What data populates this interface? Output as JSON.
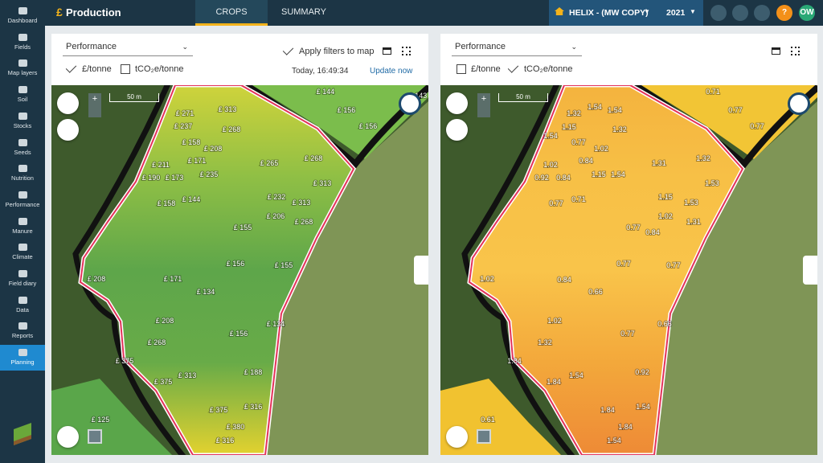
{
  "sidebar": {
    "items": [
      {
        "label": "Dashboard"
      },
      {
        "label": "Fields"
      },
      {
        "label": "Map layers"
      },
      {
        "label": "Soil"
      },
      {
        "label": "Stocks"
      },
      {
        "label": "Seeds"
      },
      {
        "label": "Nutrition"
      },
      {
        "label": "Performance"
      },
      {
        "label": "Manure"
      },
      {
        "label": "Climate"
      },
      {
        "label": "Field diary"
      },
      {
        "label": "Data"
      },
      {
        "label": "Reports"
      },
      {
        "label": "Planning",
        "active": true
      }
    ]
  },
  "topbar": {
    "icon": "£",
    "title": "Production",
    "tabs": [
      {
        "label": "CROPS",
        "active": true
      },
      {
        "label": "SUMMARY"
      }
    ],
    "farm": "HELIX - (MW COPY)",
    "year": "2021",
    "help": "?",
    "user": "OW"
  },
  "panels": [
    {
      "dropdown": "Performance",
      "options": [
        {
          "label": "£/tonne",
          "checked": true
        },
        {
          "label": "tCO₂e/tonne",
          "checked": false
        }
      ],
      "apply_filters": "Apply filters to map",
      "timestamp": "Today, 16:49:34",
      "update": "Update now",
      "scale": "50 m",
      "theme": "green",
      "labels": [
        "£ 271",
        "£ 313",
        "£ 237",
        "£ 268",
        "£ 158",
        "£ 208",
        "£ 171",
        "£ 211",
        "£ 190",
        "£ 173",
        "£ 235",
        "£ 265",
        "£ 268",
        "£ 313",
        "£ 158",
        "£ 144",
        "£ 232",
        "£ 313",
        "£ 155",
        "£ 206",
        "£ 268",
        "£ 156",
        "£ 155",
        "£ 208",
        "£ 171",
        "£ 134",
        "£ 208",
        "£ 156",
        "£ 134",
        "£ 268",
        "£ 375",
        "£ 313",
        "£ 375",
        "£ 188",
        "£ 375",
        "£ 316",
        "£ 380",
        "£ 316",
        "£ 125",
        "£ 144",
        "£ 156",
        "£ 156",
        "£ 143"
      ]
    },
    {
      "dropdown": "Performance",
      "options": [
        {
          "label": "£/tonne",
          "checked": false
        },
        {
          "label": "tCO₂e/tonne",
          "checked": true
        }
      ],
      "scale": "50 m",
      "theme": "orange",
      "labels": [
        "0.71",
        "0.77",
        "0.77",
        "1.32",
        "1.54",
        "1.54",
        "1.15",
        "1.32",
        "1.54",
        "0.77",
        "1.02",
        "0.84",
        "1.02",
        "0.92",
        "0.84",
        "1.15",
        "1.54",
        "1.31",
        "1.32",
        "1.53",
        "0.77",
        "0.71",
        "1.15",
        "1.53",
        "1.02",
        "1.31",
        "0.77",
        "0.84",
        "0.77",
        "0.77",
        "1.02",
        "0.84",
        "0.66",
        "1.02",
        "0.77",
        "0.66",
        "1.32",
        "1.84",
        "1.84",
        "1.54",
        "0.92",
        "1.84",
        "1.54",
        "1.84",
        "1.54",
        "0.61"
      ]
    }
  ]
}
